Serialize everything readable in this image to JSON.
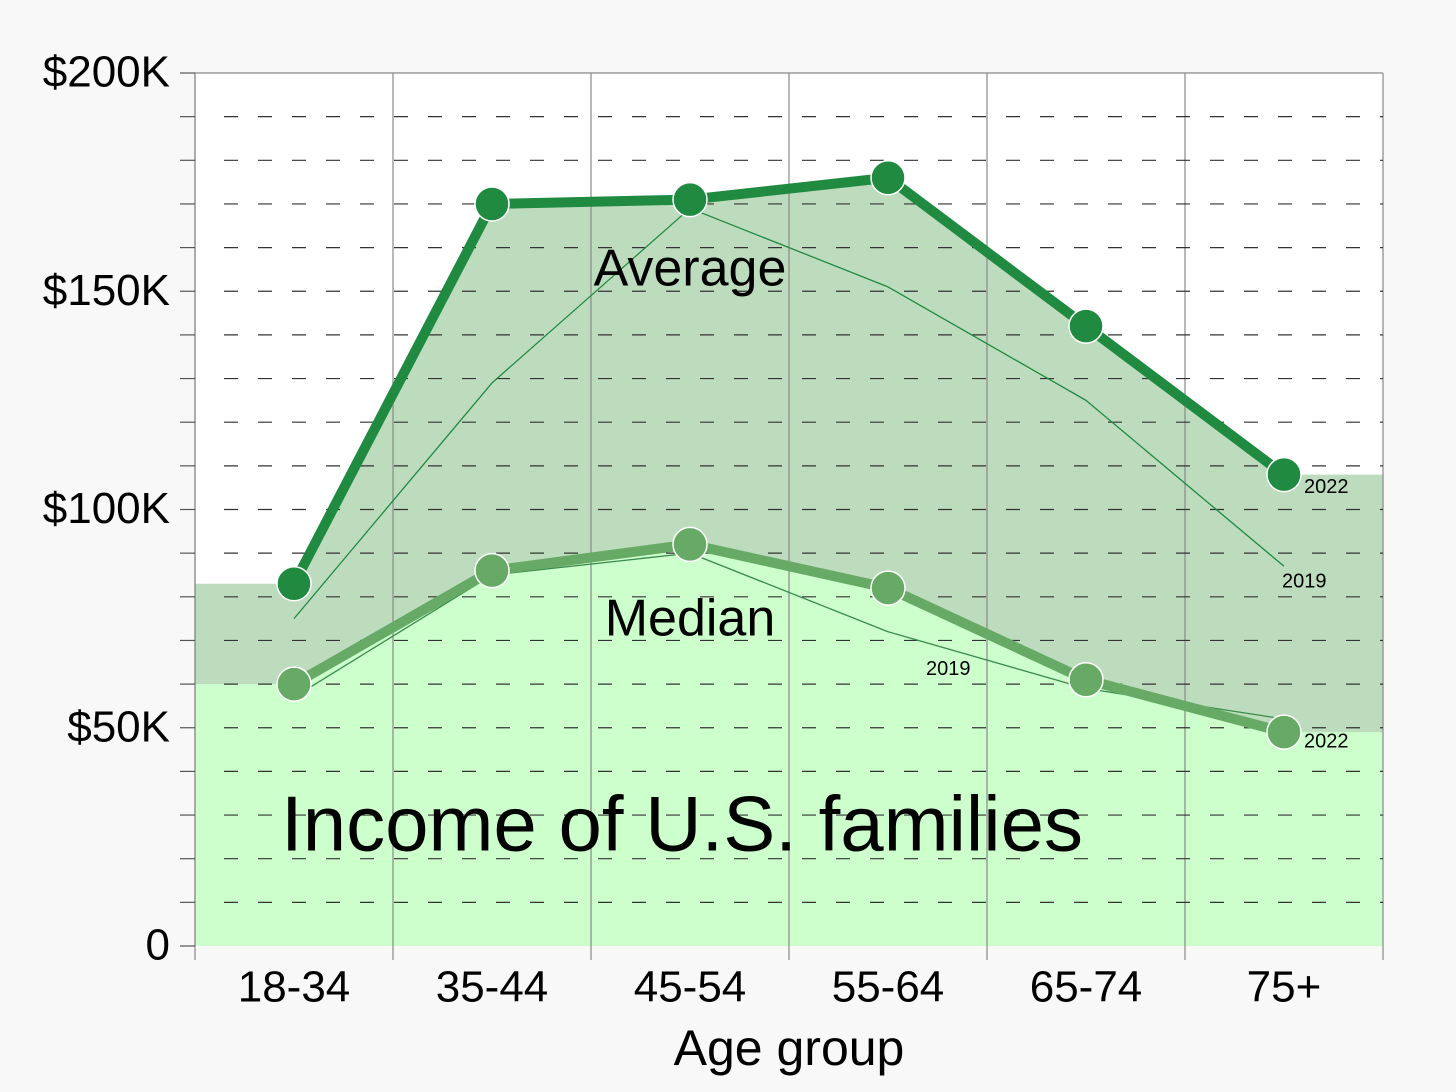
{
  "chart_data": {
    "type": "line",
    "title": "Income of U.S. families",
    "x_label": "Age group",
    "annotations": [
      "Average",
      "Median"
    ],
    "categories": [
      "18-34",
      "35-44",
      "45-54",
      "55-64",
      "65-74",
      "75+"
    ],
    "series": [
      {
        "name": "2022",
        "group": "Average",
        "color": "#1f8a40",
        "values": [
          83,
          170,
          171,
          176,
          142,
          108
        ]
      },
      {
        "name": "2019",
        "group": "Average",
        "color": "#1f8a40",
        "values": [
          75,
          129,
          169,
          151,
          125,
          87
        ]
      },
      {
        "name": "2022",
        "group": "Median",
        "color": "#66aa66",
        "values": [
          60,
          86,
          92,
          82,
          61,
          49
        ]
      },
      {
        "name": "2019",
        "group": "Median",
        "color": "#3a8a4a",
        "values": [
          57,
          85,
          90,
          72,
          59,
          52
        ]
      }
    ],
    "area_colors": [
      "#bddcbd",
      "#ccffcc"
    ],
    "ylim": [
      0,
      200
    ],
    "yticks": [
      0,
      {
        "value": 50,
        "label": "$50K"
      },
      {
        "value": 100,
        "label": "$100K"
      },
      {
        "value": 150,
        "label": "$150K"
      },
      {
        "value": 200,
        "label": "$200K"
      }
    ],
    "minor_yticks": [
      10,
      20,
      30,
      40,
      60,
      70,
      80,
      90,
      110,
      120,
      130,
      140,
      160,
      170,
      180,
      190
    ],
    "grid": true
  }
}
